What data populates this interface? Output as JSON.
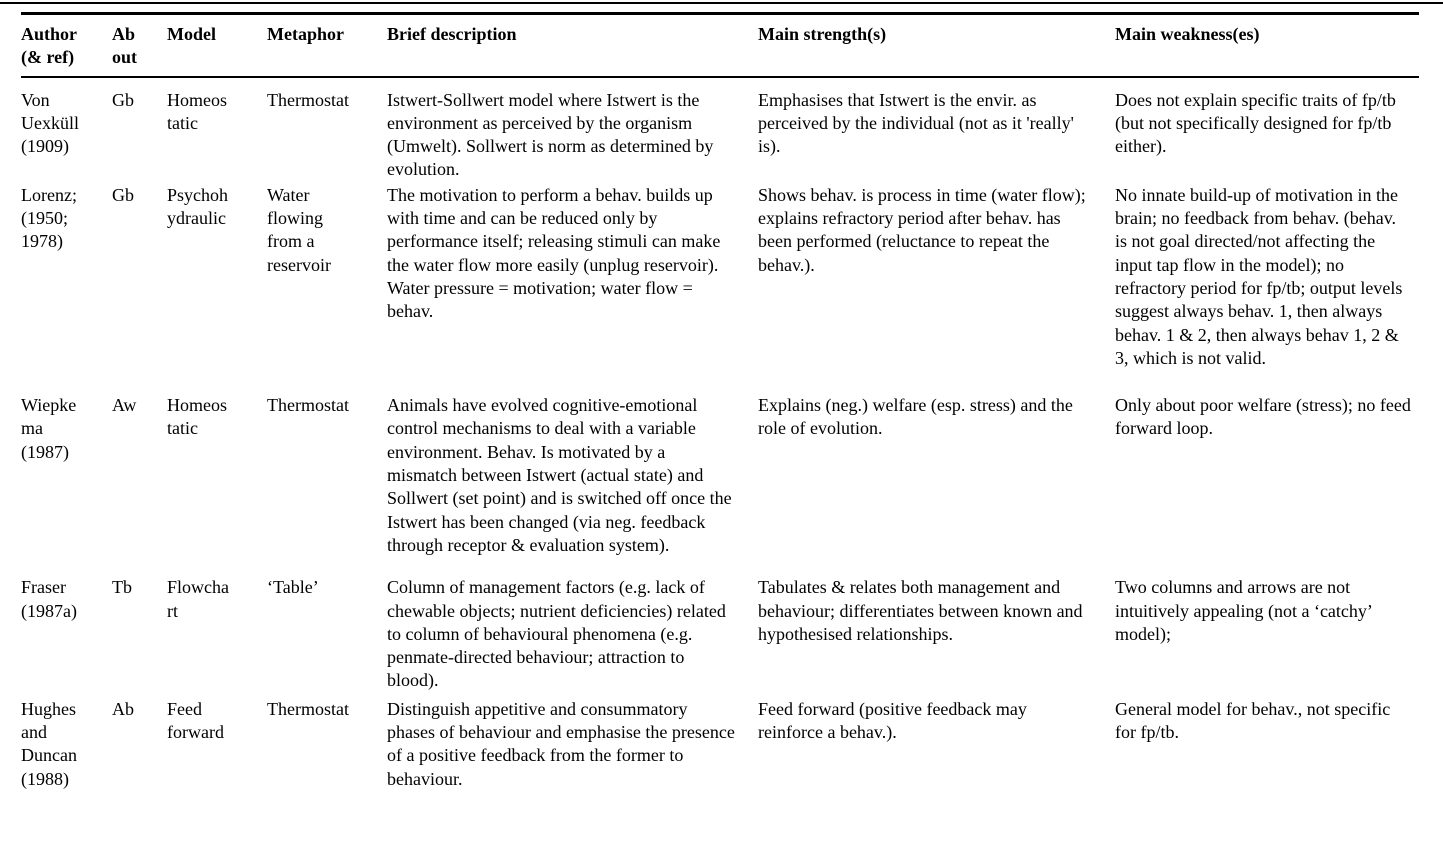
{
  "colors": {
    "background": "#ffffff",
    "text": "#000000",
    "rule": "#000000"
  },
  "table": {
    "columns": [
      {
        "label": "Author\n(& ref)"
      },
      {
        "label": "Ab\nout"
      },
      {
        "label": "Model"
      },
      {
        "label": "Metaphor"
      },
      {
        "label": "Brief description"
      },
      {
        "label": "Main strength(s)"
      },
      {
        "label": "Main weakness(es)"
      }
    ],
    "rows": [
      {
        "author": "Von\nUexküll\n(1909)",
        "about": "Gb",
        "model": "Homeos\ntatic",
        "metaphor": "Thermostat",
        "description": "Istwert-Sollwert model where Istwert is the environment as perceived by the organism (Umwelt). Sollwert is norm as determined by evolution.",
        "strengths": "Emphasises that Istwert is the envir. as perceived by the individual (not as it 'really' is).",
        "weaknesses": "Does not explain specific traits of fp/tb (but not specifically designed for fp/tb either)."
      },
      {
        "author": "Lorenz;\n(1950;\n1978)",
        "about": "Gb",
        "model": "Psychoh\nydraulic",
        "metaphor": "Water\nflowing\nfrom a\nreservoir",
        "description": "The motivation to perform a behav. builds up with time and can be reduced only by performance itself; releasing stimuli can make the water flow more easily (unplug reservoir). Water pressure = motivation; water flow = behav.",
        "strengths": "Shows behav. is process in time (water flow); explains refractory period after behav. has been performed (reluctance to repeat the behav.).",
        "weaknesses": "No innate build-up of motivation in the brain; no feedback from behav. (behav. is not goal directed/not affecting the input tap flow in the model); no refractory period for fp/tb; output levels suggest always behav. 1, then always behav. 1 & 2, then always behav 1, 2 & 3, which is not valid."
      },
      {
        "author": "Wiepke\nma\n(1987)",
        "about": "Aw",
        "model": "Homeos\ntatic",
        "metaphor": "Thermostat",
        "description": "Animals have evolved cognitive-emotional control mechanisms to deal with a variable environment. Behav. Is motivated by a mismatch between Istwert (actual state) and Sollwert (set point) and is switched off once the Istwert has been changed (via neg. feedback through receptor & evaluation system).",
        "strengths": "Explains (neg.) welfare (esp. stress) and the role of evolution.",
        "weaknesses": "Only about poor welfare (stress); no feed forward loop."
      },
      {
        "author": "Fraser\n(1987a)",
        "about": "Tb",
        "model": "Flowcha\nrt",
        "metaphor": "‘Table’",
        "description": "Column of management factors (e.g. lack of chewable objects; nutrient deficiencies) related to column of behavioural phenomena (e.g. penmate-directed behaviour; attraction to blood).",
        "strengths": "Tabulates & relates both management and behaviour; differentiates between known and hypothesised relationships.",
        "weaknesses": "Two columns and arrows are not intuitively appealing (not a ‘catchy’ model);"
      },
      {
        "author": "Hughes\nand\nDuncan\n(1988)",
        "about": "Ab",
        "model": "Feed\nforward",
        "metaphor": "Thermostat",
        "description": "Distinguish appetitive and consummatory phases of behaviour and emphasise the presence of a positive feedback from the former to behaviour.",
        "strengths": "Feed forward (positive feedback may reinforce a behav.).",
        "weaknesses": "General model for behav., not specific for fp/tb."
      }
    ]
  }
}
